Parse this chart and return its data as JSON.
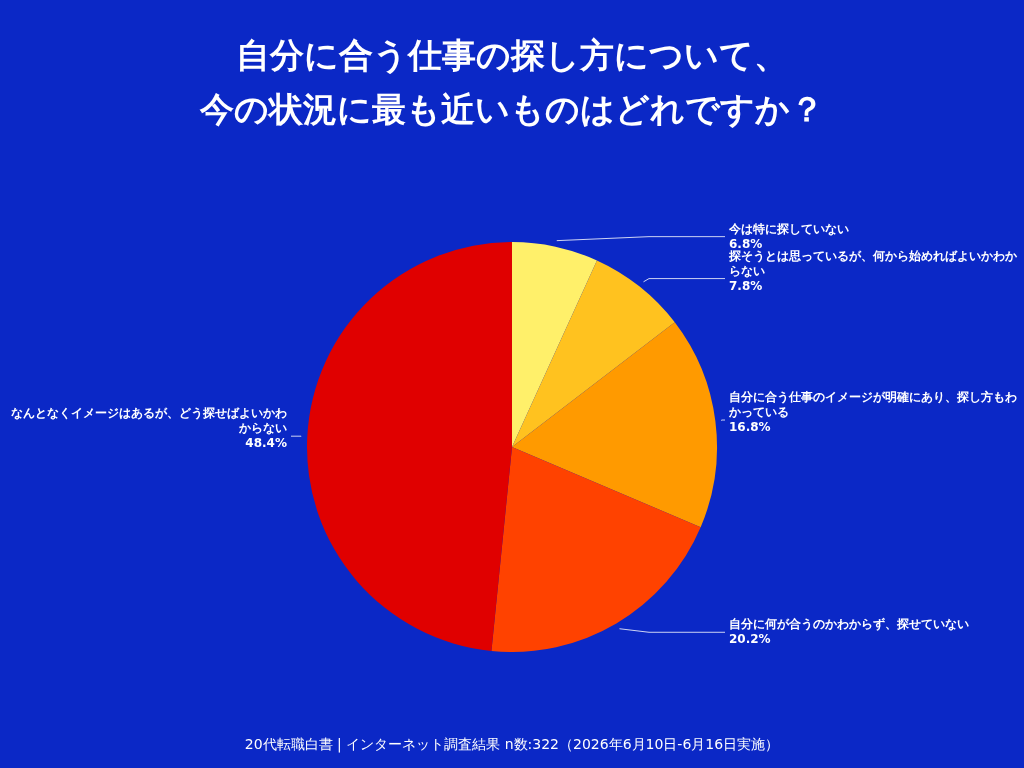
{
  "chart_data": {
    "type": "pie",
    "title": "自分に合う仕事の探し方について、今の状況に最も近いものはどれですか？",
    "categories": [
      "今は特に探していない",
      "探そうとは思っているが、何から始めればよいかわからない",
      "自分に合う仕事のイメージが明確にあり、探し方もわかっている",
      "自分に何が合うのかわからず、探せていない",
      "なんとなくイメージはあるが、どう探せばよいかわからない"
    ],
    "values": [
      6.8,
      7.8,
      16.8,
      20.2,
      48.4
    ],
    "value_labels": [
      "6.8%",
      "7.8%",
      "16.8%",
      "20.2%",
      "48.4%"
    ],
    "colors": [
      "#fff06a",
      "#ffc21f",
      "#ff9a00",
      "#ff4200",
      "#e00000"
    ],
    "legend": false,
    "annotations": [
      "20代転職白書 | インターネット調査結果 n数:322（2026年6月10日-6月16日実施）"
    ]
  }
}
